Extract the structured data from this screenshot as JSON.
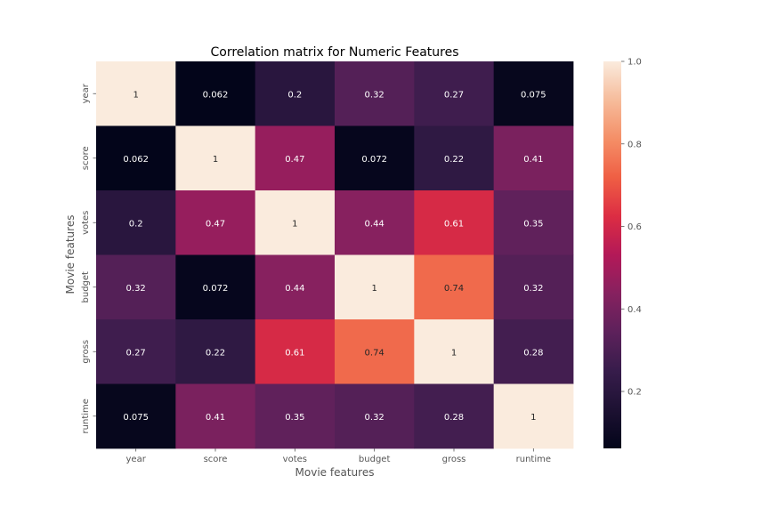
{
  "chart_data": {
    "type": "heatmap",
    "title": "Correlation matrix for Numeric Features",
    "xlabel": "Movie features",
    "ylabel": "Movie features",
    "x_categories": [
      "year",
      "score",
      "votes",
      "budget",
      "gross",
      "runtime"
    ],
    "y_categories": [
      "year",
      "score",
      "votes",
      "budget",
      "gross",
      "runtime"
    ],
    "values": [
      [
        1,
        0.062,
        0.2,
        0.32,
        0.27,
        0.075
      ],
      [
        0.062,
        1,
        0.47,
        0.072,
        0.22,
        0.41
      ],
      [
        0.2,
        0.47,
        1,
        0.44,
        0.61,
        0.35
      ],
      [
        0.32,
        0.072,
        0.44,
        1,
        0.74,
        0.32
      ],
      [
        0.27,
        0.22,
        0.61,
        0.74,
        1,
        0.28
      ],
      [
        0.075,
        0.41,
        0.35,
        0.32,
        0.28,
        1
      ]
    ],
    "annotations": [
      [
        "1",
        "0.062",
        "0.2",
        "0.32",
        "0.27",
        "0.075"
      ],
      [
        "0.062",
        "1",
        "0.47",
        "0.072",
        "0.22",
        "0.41"
      ],
      [
        "0.2",
        "0.47",
        "1",
        "0.44",
        "0.61",
        "0.35"
      ],
      [
        "0.32",
        "0.072",
        "0.44",
        "1",
        "0.74",
        "0.32"
      ],
      [
        "0.27",
        "0.22",
        "0.61",
        "0.74",
        "1",
        "0.28"
      ],
      [
        "0.075",
        "0.41",
        "0.35",
        "0.32",
        "0.28",
        "1"
      ]
    ],
    "colorbar": {
      "vmin": 0.062,
      "vmax": 1,
      "ticks": [
        0.2,
        0.4,
        0.6,
        0.8,
        1.0
      ],
      "tick_labels": [
        "0.2",
        "0.4",
        "0.6",
        "0.8",
        "1.0"
      ],
      "colormap": "rocket"
    },
    "grid": false
  }
}
